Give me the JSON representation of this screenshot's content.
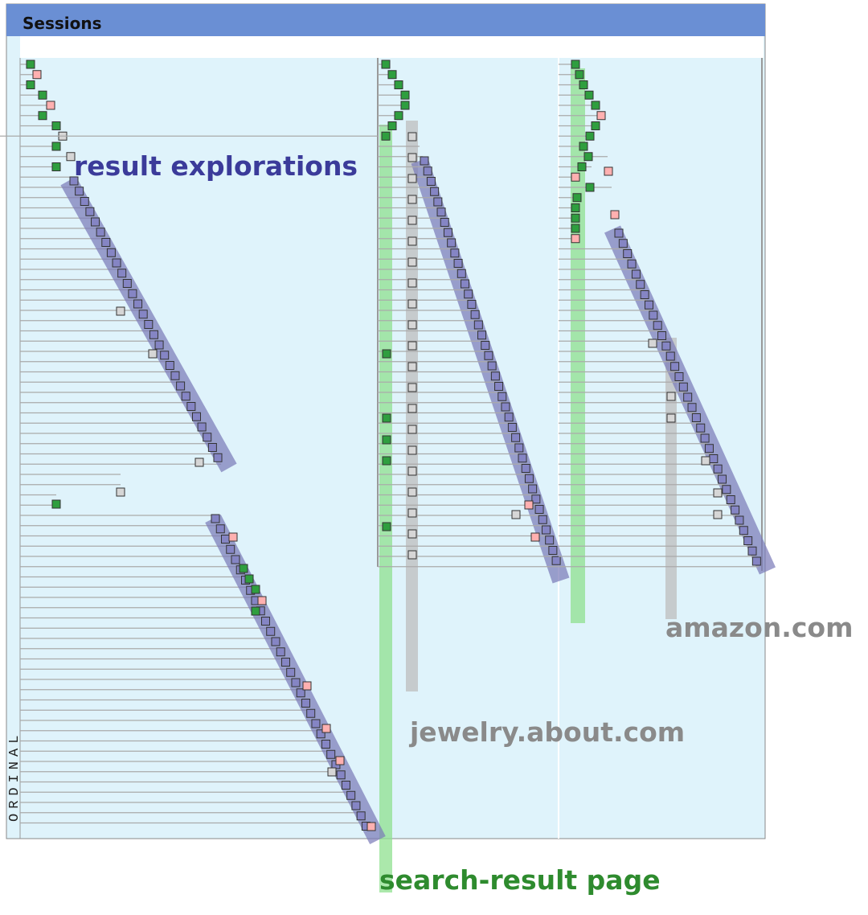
{
  "header": {
    "title": "Sessions"
  },
  "axis": {
    "label": "ORDINAL"
  },
  "annotations": {
    "result_explorations": "result explorations",
    "jewelry": "jewelry.about.com",
    "amazon": "amazon.com",
    "search_result_page": "search-result page"
  }
}
